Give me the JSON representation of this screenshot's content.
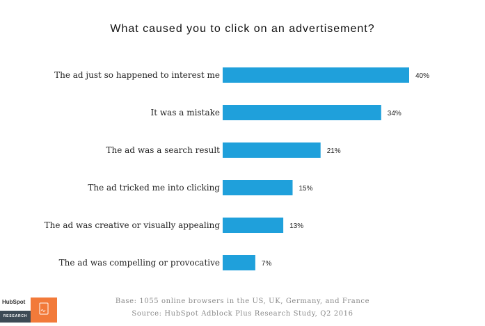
{
  "chart_data": {
    "type": "bar",
    "orientation": "horizontal",
    "title": "What caused you to click on an advertisement?",
    "categories": [
      "The ad just so happened to interest me",
      "It was a mistake",
      "The ad was a search result",
      "The ad tricked me into clicking",
      "The ad was creative or visually appealing",
      "The ad was compelling or provocative"
    ],
    "values": [
      40,
      34,
      21,
      15,
      13,
      7
    ],
    "value_labels": [
      "40%",
      "34%",
      "21%",
      "15%",
      "13%",
      "7%"
    ],
    "unit": "%",
    "xlim": [
      0,
      40
    ],
    "grid": false,
    "legend": "none",
    "bar_color": "#1fa0db"
  },
  "footer": {
    "base": "Base: 1055 online browsers in the US, UK, Germany, and France",
    "source": "Source: HubSpot Adblock Plus Research Study, Q2 2016"
  },
  "branding": {
    "logo_text": "HubSpot",
    "logo_subtext": "RESEARCH",
    "accent_color": "#f27a3a",
    "icon": "document-signature-icon"
  }
}
